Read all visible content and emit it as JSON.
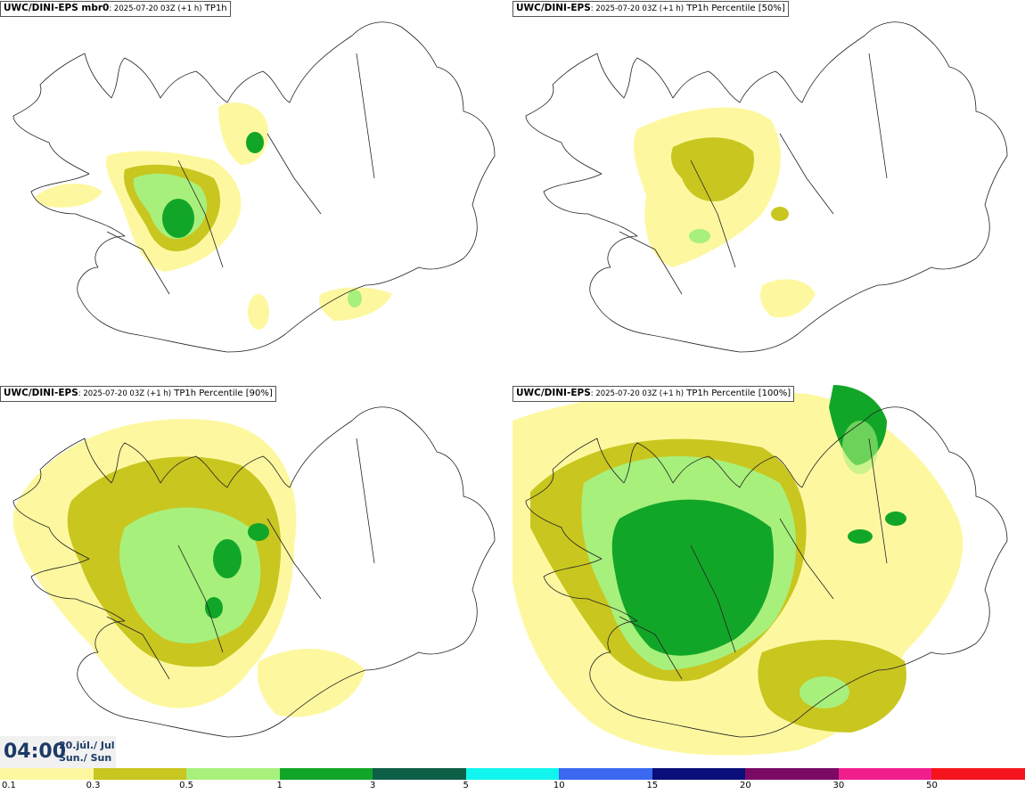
{
  "panels": [
    {
      "model": "UWC/DINI-EPS mbr0",
      "meta": ": 2025-07-20 03Z (+1 h)",
      "field": " TP1h"
    },
    {
      "model": "UWC/DINI-EPS",
      "meta": ": 2025-07-20 03Z (+1 h)",
      "field": " TP1h Percentile [50%]"
    },
    {
      "model": "UWC/DINI-EPS",
      "meta": ": 2025-07-20 03Z (+1 h)",
      "field": " TP1h Percentile [90%]"
    },
    {
      "model": "UWC/DINI-EPS",
      "meta": ": 2025-07-20 03Z (+1 h)",
      "field": " TP1h Percentile [100%]"
    }
  ],
  "time": {
    "hour": "04:00",
    "date": "20.júl./ Jul",
    "day": "Sun./ Sun"
  },
  "legend": {
    "labels": [
      "0.1",
      "0.3",
      "0.5",
      "1",
      "3",
      "5",
      "10",
      "15",
      "20",
      "30",
      "50"
    ],
    "colors": [
      "#fdf8a0",
      "#c9c620",
      "#a8f07c",
      "#12a628",
      "#0e5f48",
      "#12f5ee",
      "#3a68f0",
      "#0a0e78",
      "#7a0a66",
      "#f01e8c",
      "#f5141e"
    ]
  }
}
